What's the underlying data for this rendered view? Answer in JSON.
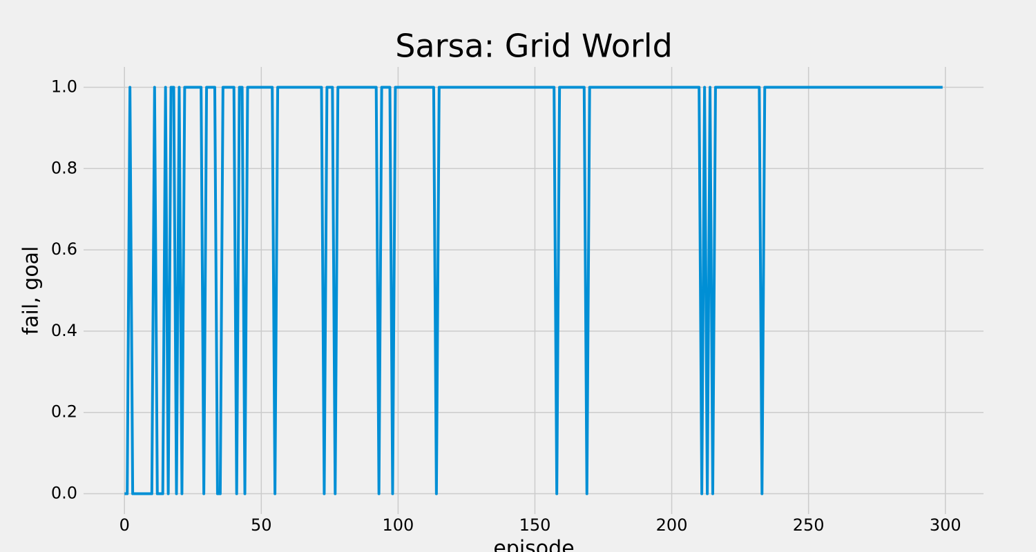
{
  "chart_data": {
    "type": "line",
    "title": "Sarsa: Grid World",
    "xlabel": "episode",
    "ylabel": "fail, goal",
    "color": "#008fd5",
    "grid": true,
    "x": [
      0,
      1,
      2,
      3,
      4,
      5,
      6,
      7,
      8,
      9,
      10,
      11,
      12,
      13,
      14,
      15,
      16,
      17,
      18,
      19,
      20,
      21,
      22,
      23,
      24,
      25,
      26,
      27,
      28,
      29,
      30,
      31,
      32,
      33,
      34,
      35,
      36,
      37,
      38,
      39,
      40,
      41,
      42,
      43,
      44,
      45,
      46,
      47,
      48,
      49,
      50,
      51,
      52,
      53,
      54,
      55,
      56,
      57,
      58,
      59,
      60,
      61,
      62,
      63,
      64,
      65,
      66,
      67,
      68,
      69,
      70,
      71,
      72,
      73,
      74,
      75,
      76,
      77,
      78,
      79,
      80,
      81,
      82,
      83,
      84,
      85,
      86,
      87,
      88,
      89,
      90,
      91,
      92,
      93,
      94,
      95,
      96,
      97,
      98,
      99,
      100,
      101,
      102,
      103,
      104,
      105,
      106,
      107,
      108,
      109,
      110,
      111,
      112,
      113,
      114,
      115,
      116,
      117,
      118,
      119,
      120,
      121,
      122,
      123,
      124,
      125,
      126,
      127,
      128,
      129,
      130,
      131,
      132,
      133,
      134,
      135,
      136,
      137,
      138,
      139,
      140,
      141,
      142,
      143,
      144,
      145,
      146,
      147,
      148,
      149,
      150,
      151,
      152,
      153,
      154,
      155,
      156,
      157,
      158,
      159,
      160,
      161,
      162,
      163,
      164,
      165,
      166,
      167,
      168,
      169,
      170,
      171,
      172,
      173,
      174,
      175,
      176,
      177,
      178,
      179,
      180,
      181,
      182,
      183,
      184,
      185,
      186,
      187,
      188,
      189,
      190,
      191,
      192,
      193,
      194,
      195,
      196,
      197,
      198,
      199,
      200,
      201,
      202,
      203,
      204,
      205,
      206,
      207,
      208,
      209,
      210,
      211,
      212,
      213,
      214,
      215,
      216,
      217,
      218,
      219,
      220,
      221,
      222,
      223,
      224,
      225,
      226,
      227,
      228,
      229,
      230,
      231,
      232,
      233,
      234,
      235,
      236,
      237,
      238,
      239,
      240,
      241,
      242,
      243,
      244,
      245,
      246,
      247,
      248,
      249,
      250,
      251,
      252,
      253,
      254,
      255,
      256,
      257,
      258,
      259,
      260,
      261,
      262,
      263,
      264,
      265,
      266,
      267,
      268,
      269,
      270,
      271,
      272,
      273,
      274,
      275,
      276,
      277,
      278,
      279,
      280,
      281,
      282,
      283,
      284,
      285,
      286,
      287,
      288,
      289,
      290,
      291,
      292,
      293,
      294,
      295,
      296,
      297,
      298,
      299
    ],
    "values": [
      0,
      0,
      1,
      0,
      0,
      0,
      0,
      0,
      0,
      0,
      0,
      1,
      0,
      0,
      0,
      1,
      0,
      1,
      1,
      0,
      1,
      0,
      1,
      1,
      1,
      1,
      1,
      1,
      1,
      0,
      1,
      1,
      1,
      1,
      0,
      0,
      1,
      1,
      1,
      1,
      1,
      0,
      1,
      1,
      0,
      1,
      1,
      1,
      1,
      1,
      1,
      1,
      1,
      1,
      1,
      0,
      1,
      1,
      1,
      1,
      1,
      1,
      1,
      1,
      1,
      1,
      1,
      1,
      1,
      1,
      1,
      1,
      1,
      0,
      1,
      1,
      1,
      0,
      1,
      1,
      1,
      1,
      1,
      1,
      1,
      1,
      1,
      1,
      1,
      1,
      1,
      1,
      1,
      0,
      1,
      1,
      1,
      1,
      0,
      1,
      1,
      1,
      1,
      1,
      1,
      1,
      1,
      1,
      1,
      1,
      1,
      1,
      1,
      1,
      0,
      1,
      1,
      1,
      1,
      1,
      1,
      1,
      1,
      1,
      1,
      1,
      1,
      1,
      1,
      1,
      1,
      1,
      1,
      1,
      1,
      1,
      1,
      1,
      1,
      1,
      1,
      1,
      1,
      1,
      1,
      1,
      1,
      1,
      1,
      1,
      1,
      1,
      1,
      1,
      1,
      1,
      1,
      1,
      0,
      1,
      1,
      1,
      1,
      1,
      1,
      1,
      1,
      1,
      1,
      0,
      1,
      1,
      1,
      1,
      1,
      1,
      1,
      1,
      1,
      1,
      1,
      1,
      1,
      1,
      1,
      1,
      1,
      1,
      1,
      1,
      1,
      1,
      1,
      1,
      1,
      1,
      1,
      1,
      1,
      1,
      1,
      1,
      1,
      1,
      1,
      1,
      1,
      1,
      1,
      1,
      1,
      0,
      1,
      0,
      1,
      0,
      1,
      1,
      1,
      1,
      1,
      1,
      1,
      1,
      1,
      1,
      1,
      1,
      1,
      1,
      1,
      1,
      1,
      0,
      1,
      1,
      1,
      1,
      1,
      1,
      1,
      1,
      1,
      1,
      1,
      1,
      1,
      1,
      1,
      1,
      1,
      1,
      1,
      1,
      1,
      1,
      1,
      1,
      1,
      1,
      1,
      1,
      1,
      1,
      1,
      1,
      1,
      1,
      1,
      1,
      1,
      1,
      1,
      1,
      1,
      1,
      1,
      1,
      1,
      1,
      1,
      1,
      1,
      1,
      1,
      1,
      1,
      1,
      1,
      1,
      1,
      1,
      1,
      1,
      1,
      1,
      1,
      1,
      1,
      1
    ],
    "xlim": [
      -14.95,
      313.95
    ],
    "xticks": [
      0,
      50,
      100,
      150,
      200,
      250,
      300
    ],
    "ylim": [
      -0.05,
      1.05
    ],
    "yticks": [
      {
        "value": 0,
        "label": "0.0"
      },
      0.2,
      0.4,
      0.6,
      0.8,
      {
        "value": 1,
        "label": "1.0"
      }
    ]
  }
}
